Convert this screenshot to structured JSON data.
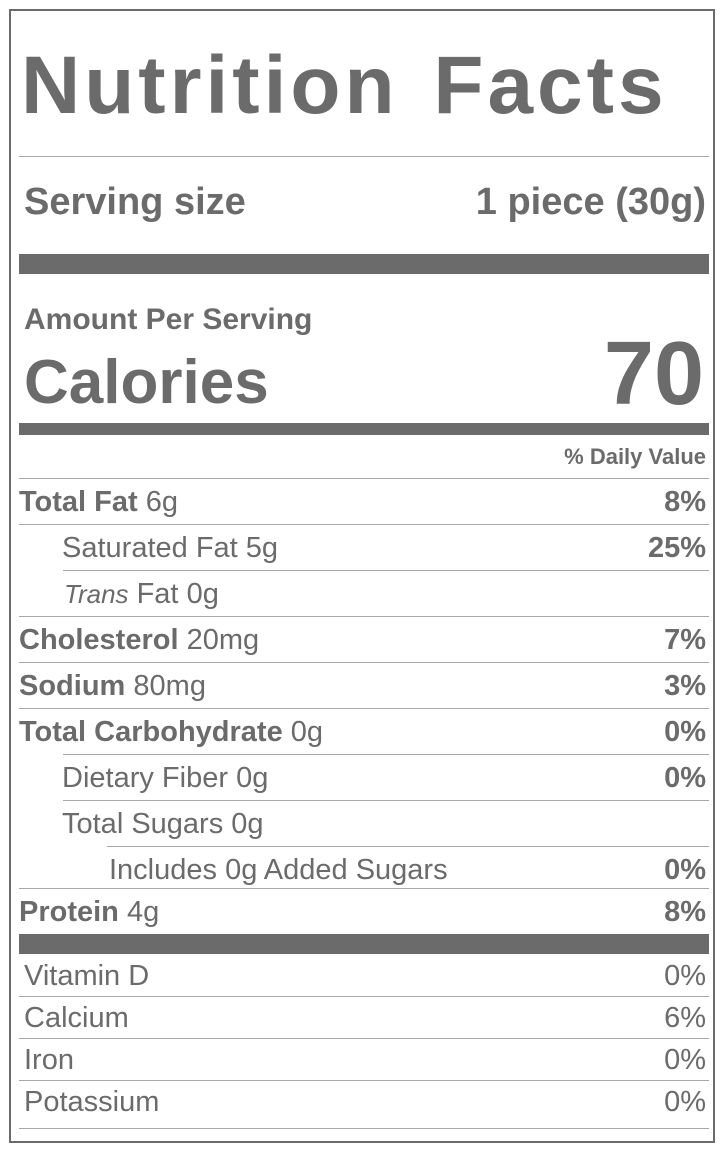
{
  "title": "Nutrition Facts",
  "serving": {
    "label": "Serving size",
    "value": "1 piece (30g)"
  },
  "amount_per_serving": "Amount Per Serving",
  "calories": {
    "label": "Calories",
    "value": "70"
  },
  "daily_value_header": "% Daily Value",
  "nutrients": [
    {
      "name": "Total Fat",
      "amount": "6g",
      "dv": "8%"
    },
    {
      "name": "Saturated Fat",
      "amount": "5g",
      "dv": "25%"
    },
    {
      "name_italic": "Trans",
      "name": "Fat",
      "amount": "0g",
      "dv": ""
    },
    {
      "name": "Cholesterol",
      "amount": "20mg",
      "dv": "7%"
    },
    {
      "name": "Sodium",
      "amount": "80mg",
      "dv": "3%"
    },
    {
      "name": "Total Carbohydrate",
      "amount": "0g",
      "dv": "0%"
    },
    {
      "name": "Dietary Fiber",
      "amount": "0g",
      "dv": "0%"
    },
    {
      "name": "Total Sugars",
      "amount": "0g",
      "dv": ""
    },
    {
      "name": "Includes 0g Added Sugars",
      "amount": "",
      "dv": "0%"
    },
    {
      "name": "Protein",
      "amount": "4g",
      "dv": "8%"
    }
  ],
  "vitamins": [
    {
      "name": "Vitamin D",
      "dv": "0%"
    },
    {
      "name": "Calcium",
      "dv": "6%"
    },
    {
      "name": "Iron",
      "dv": "0%"
    },
    {
      "name": "Potassium",
      "dv": "0%"
    }
  ],
  "colors": {
    "text": "#6b6b6b",
    "rule": "#6b6b6b",
    "thin_rule": "#a8a8a8"
  }
}
